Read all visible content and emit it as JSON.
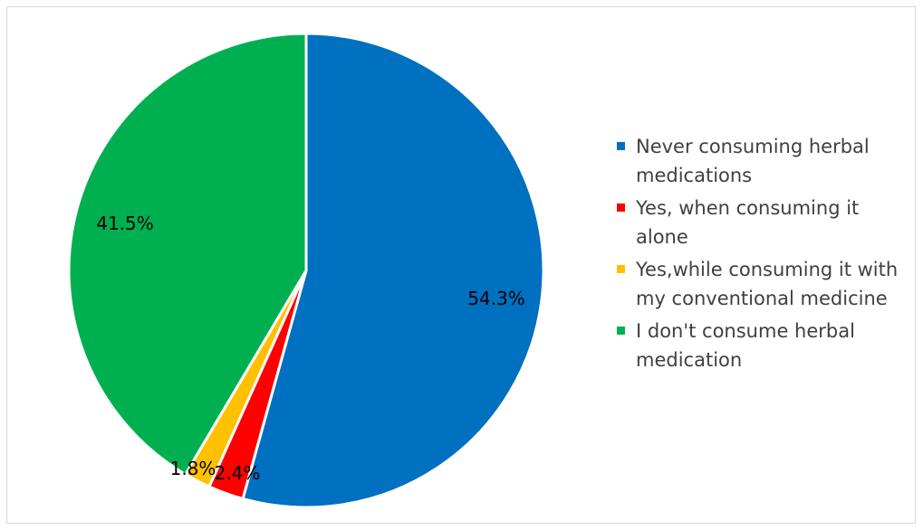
{
  "chart_data": {
    "type": "pie",
    "slices": [
      {
        "label": "Never consuming herbal medications",
        "value": 54.3,
        "display": "54.3%",
        "color": "#0070c0"
      },
      {
        "label": "Yes, when consuming it alone",
        "value": 2.4,
        "display": "2.4%",
        "color": "#ff0000"
      },
      {
        "label": "Yes,while consuming it with my conventional medicine",
        "value": 1.8,
        "display": "1.8%",
        "color": "#ffc000"
      },
      {
        "label": "I don't consume herbal medication",
        "value": 41.5,
        "display": "41.5%",
        "color": "#00b050"
      }
    ],
    "legend_position": "right"
  }
}
